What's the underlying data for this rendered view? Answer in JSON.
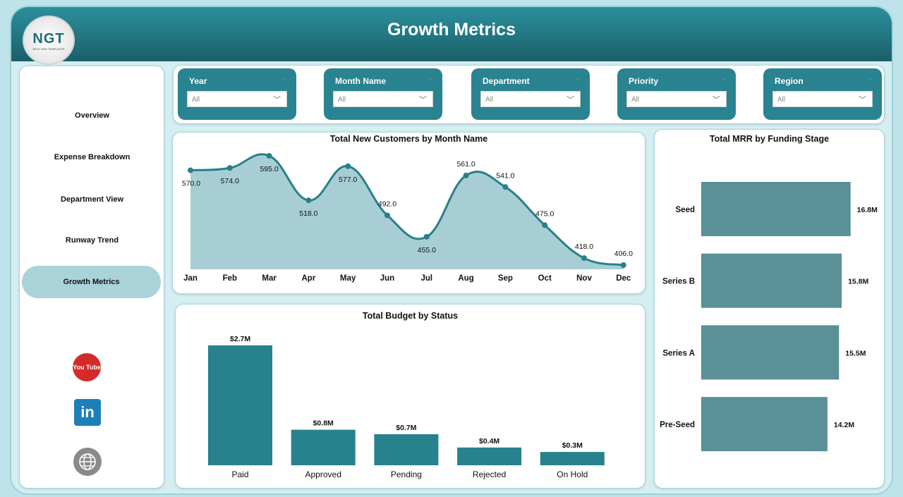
{
  "header": {
    "title": "Growth Metrics",
    "logo_text": "NGT",
    "logo_sub": "NEXT GEN TEMPLATES"
  },
  "sidebar": {
    "items": [
      {
        "label": "Overview"
      },
      {
        "label": "Expense Breakdown"
      },
      {
        "label": "Department View"
      },
      {
        "label": "Runway Trend"
      },
      {
        "label": "Growth Metrics",
        "active": true
      }
    ],
    "social": [
      "youtube-icon",
      "linkedin-icon",
      "web-icon"
    ],
    "youtube_text": "You Tube",
    "linkedin_text": "in"
  },
  "filters": [
    {
      "label": "Year",
      "value": "All"
    },
    {
      "label": "Month Name",
      "value": "All"
    },
    {
      "label": "Department",
      "value": "All"
    },
    {
      "label": "Priority",
      "value": "All"
    },
    {
      "label": "Region",
      "value": "All"
    }
  ],
  "chart_data": [
    {
      "type": "area",
      "title": "Total New Customers by Month Name",
      "categories": [
        "Jan",
        "Feb",
        "Mar",
        "Apr",
        "May",
        "Jun",
        "Jul",
        "Aug",
        "Sep",
        "Oct",
        "Nov",
        "Dec"
      ],
      "values": [
        570,
        574,
        595,
        518,
        577,
        492,
        455,
        561,
        541,
        475,
        418,
        406
      ],
      "labels": [
        "570.0",
        "574.0",
        "595.0",
        "518.0",
        "577.0",
        "492.0",
        "455.0",
        "561.0",
        "541.0",
        "475.0",
        "418.0",
        "406.0"
      ],
      "color": "#2a7f8a",
      "fill": "#a8ced5"
    },
    {
      "type": "bar",
      "title": "Total Budget by Status",
      "categories": [
        "Paid",
        "Approved",
        "Pending",
        "Rejected",
        "On Hold"
      ],
      "values": [
        2.7,
        0.8,
        0.7,
        0.4,
        0.3
      ],
      "labels": [
        "$2.7M",
        "$0.8M",
        "$0.7M",
        "$0.4M",
        "$0.3M"
      ],
      "unit": "M",
      "color": "#27828d"
    },
    {
      "type": "bar",
      "orientation": "horizontal",
      "title": "Total MRR by Funding Stage",
      "categories": [
        "Seed",
        "Series B",
        "Series A",
        "Pre-Seed"
      ],
      "values": [
        16.8,
        15.8,
        15.5,
        14.2
      ],
      "labels": [
        "16.8M",
        "15.8M",
        "15.5M",
        "14.2M"
      ],
      "color": "#5a9199"
    }
  ]
}
